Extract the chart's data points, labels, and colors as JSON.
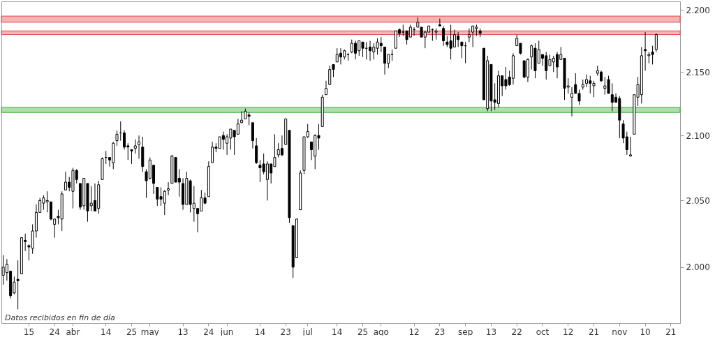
{
  "chart_data": {
    "type": "candlestick",
    "categories": [
      null,
      null,
      null,
      null,
      null,
      null,
      null,
      "15",
      null,
      null,
      null,
      null,
      null,
      null,
      "24",
      null,
      null,
      null,
      null,
      "abr",
      null,
      null,
      null,
      null,
      null,
      null,
      null,
      null,
      "14",
      null,
      null,
      null,
      null,
      null,
      null,
      "25",
      null,
      null,
      null,
      null,
      "may",
      null,
      null,
      null,
      null,
      null,
      null,
      null,
      null,
      "13",
      null,
      null,
      null,
      null,
      null,
      null,
      "24",
      null,
      null,
      null,
      null,
      "jun",
      null,
      null,
      null,
      null,
      null,
      null,
      null,
      null,
      "14",
      null,
      null,
      null,
      null,
      null,
      null,
      "23",
      null,
      null,
      null,
      null,
      null,
      "jul",
      null,
      null,
      null,
      null,
      null,
      null,
      null,
      "14",
      null,
      null,
      null,
      null,
      null,
      null,
      "25",
      null,
      null,
      null,
      null,
      "ago",
      null,
      null,
      null,
      null,
      null,
      null,
      null,
      null,
      "12",
      null,
      null,
      null,
      null,
      null,
      null,
      "23",
      null,
      null,
      null,
      null,
      null,
      null,
      "sep",
      null,
      null,
      null,
      null,
      null,
      null,
      "13",
      null,
      null,
      null,
      null,
      null,
      null,
      "22",
      null,
      null,
      null,
      null,
      null,
      null,
      "oct",
      null,
      null,
      null,
      null,
      null,
      null,
      "12",
      null,
      null,
      null,
      null,
      null,
      null,
      "21",
      null,
      null,
      null,
      null,
      null,
      null,
      "nov",
      null,
      null,
      null,
      null,
      null,
      null,
      "10",
      null,
      null,
      null,
      null,
      null,
      null,
      "21",
      null,
      null
    ],
    "ohlc": [
      [
        1994,
        2009,
        1987,
        2000
      ],
      [
        1996,
        2006,
        1990,
        2002
      ],
      [
        1997,
        1997,
        1977,
        1979
      ],
      [
        1981,
        1993,
        1980,
        1989
      ],
      [
        1991,
        2005,
        1969,
        1990
      ],
      [
        1995,
        2022,
        1995,
        2022
      ],
      [
        2020,
        2025,
        2012,
        2019
      ],
      [
        2016,
        2017,
        2005,
        2015
      ],
      [
        2014,
        2032,
        2010,
        2027
      ],
      [
        2027,
        2047,
        2022,
        2041
      ],
      [
        2041,
        2052,
        2041,
        2050
      ],
      [
        2048,
        2054,
        2043,
        2052
      ],
      [
        2049,
        2057,
        2041,
        2050
      ],
      [
        2049,
        2049,
        2035,
        2036
      ],
      [
        2032,
        2036,
        2022,
        2036
      ],
      [
        2038,
        2043,
        2032,
        2037
      ],
      [
        2036,
        2057,
        2027,
        2055
      ],
      [
        2058,
        2072,
        2058,
        2064
      ],
      [
        2064,
        2068,
        2057,
        2060
      ],
      [
        2057,
        2075,
        2044,
        2073
      ],
      [
        2073,
        2074,
        2063,
        2066
      ],
      [
        2063,
        2063,
        2043,
        2045
      ],
      [
        2046,
        2067,
        2043,
        2067
      ],
      [
        2063,
        2063,
        2034,
        2042
      ],
      [
        2046,
        2061,
        2042,
        2048
      ],
      [
        2050,
        2063,
        2042,
        2042
      ],
      [
        2044,
        2065,
        2040,
        2062
      ],
      [
        2066,
        2083,
        2066,
        2082
      ],
      [
        2083,
        2088,
        2078,
        2083
      ],
      [
        2083,
        2083,
        2076,
        2081
      ],
      [
        2079,
        2095,
        2074,
        2094
      ],
      [
        2096,
        2104,
        2092,
        2101
      ],
      [
        2102,
        2111,
        2096,
        2102
      ],
      [
        2102,
        2104,
        2089,
        2091
      ],
      [
        2092,
        2094,
        2081,
        2091
      ],
      [
        2089,
        2089,
        2078,
        2088
      ],
      [
        2090,
        2097,
        2086,
        2092
      ],
      [
        2093,
        2100,
        2082,
        2095
      ],
      [
        2091,
        2099,
        2072,
        2076
      ],
      [
        2072,
        2074,
        2052,
        2065
      ],
      [
        2067,
        2083,
        2066,
        2081
      ],
      [
        2077,
        2077,
        2055,
        2063
      ],
      [
        2060,
        2060,
        2046,
        2051
      ],
      [
        2053,
        2060,
        2046,
        2051
      ],
      [
        2048,
        2058,
        2039,
        2057
      ],
      [
        2058,
        2064,
        2054,
        2059
      ],
      [
        2063,
        2085,
        2063,
        2084
      ],
      [
        2083,
        2083,
        2064,
        2064
      ],
      [
        2067,
        2074,
        2053,
        2064
      ],
      [
        2063,
        2067,
        2043,
        2047
      ],
      [
        2047,
        2072,
        2047,
        2067
      ],
      [
        2065,
        2066,
        2041,
        2047
      ],
      [
        2044,
        2061,
        2034,
        2048
      ],
      [
        2044,
        2044,
        2026,
        2040
      ],
      [
        2042,
        2058,
        2042,
        2052
      ],
      [
        2052,
        2056,
        2047,
        2048
      ],
      [
        2053,
        2080,
        2053,
        2076
      ],
      [
        2079,
        2095,
        2079,
        2091
      ],
      [
        2091,
        2094,
        2087,
        2090
      ],
      [
        2090,
        2099,
        2090,
        2099
      ],
      [
        2100,
        2103,
        2089,
        2097
      ],
      [
        2094,
        2101,
        2085,
        2099
      ],
      [
        2098,
        2105,
        2089,
        2105
      ],
      [
        2104,
        2104,
        2085,
        2099
      ],
      [
        2101,
        2113,
        2101,
        2109
      ],
      [
        2110,
        2119,
        2110,
        2112
      ],
      [
        2113,
        2121,
        2113,
        2119
      ],
      [
        2116,
        2118,
        2108,
        2115
      ],
      [
        2110,
        2110,
        2090,
        2096
      ],
      [
        2092,
        2098,
        2078,
        2079
      ],
      [
        2077,
        2081,
        2064,
        2075
      ],
      [
        2078,
        2086,
        2070,
        2072
      ],
      [
        2066,
        2080,
        2050,
        2078
      ],
      [
        2078,
        2078,
        2063,
        2071
      ],
      [
        2076,
        2101,
        2076,
        2083
      ],
      [
        2085,
        2094,
        2083,
        2089
      ],
      [
        2090,
        2100,
        2084,
        2085
      ],
      [
        2093,
        2113,
        2093,
        2113
      ],
      [
        2104,
        2104,
        2033,
        2037
      ],
      [
        2031,
        2031,
        1992,
        2000
      ],
      [
        2007,
        2036,
        2007,
        2036
      ],
      [
        2043,
        2073,
        2043,
        2071
      ],
      [
        2073,
        2099,
        2070,
        2099
      ],
      [
        2099,
        2109,
        2098,
        2103
      ],
      [
        2095,
        2095,
        2081,
        2089
      ],
      [
        2084,
        2101,
        2074,
        2100
      ],
      [
        2100,
        2109,
        2089,
        2098
      ],
      [
        2107,
        2132,
        2107,
        2130
      ],
      [
        2132,
        2143,
        2132,
        2137
      ],
      [
        2140,
        2155,
        2140,
        2152
      ],
      [
        2156,
        2156,
        2146,
        2152
      ],
      [
        2158,
        2169,
        2158,
        2164
      ],
      [
        2165,
        2169,
        2156,
        2162
      ],
      [
        2162,
        2168,
        2160,
        2167
      ],
      [
        2164,
        2165,
        2159,
        2164
      ],
      [
        2166,
        2176,
        2165,
        2173
      ],
      [
        2173,
        2175,
        2160,
        2165
      ],
      [
        2167,
        2175,
        2163,
        2175
      ],
      [
        2174,
        2174,
        2162,
        2169
      ],
      [
        2169,
        2174,
        2160,
        2169
      ],
      [
        2170,
        2175,
        2159,
        2167
      ],
      [
        2166,
        2173,
        2160,
        2170
      ],
      [
        2169,
        2177,
        2164,
        2174
      ],
      [
        2173,
        2178,
        2166,
        2171
      ],
      [
        2170,
        2170,
        2148,
        2157
      ],
      [
        2157,
        2164,
        2153,
        2164
      ],
      [
        2164,
        2168,
        2159,
        2164
      ],
      [
        2169,
        2183,
        2169,
        2183
      ],
      [
        2184,
        2185,
        2178,
        2181
      ],
      [
        2182,
        2188,
        2179,
        2182
      ],
      [
        2183,
        2183,
        2172,
        2176
      ],
      [
        2178,
        2188,
        2178,
        2186
      ],
      [
        2184,
        2186,
        2179,
        2184
      ],
      [
        2186,
        2194,
        2186,
        2190
      ],
      [
        2186,
        2186,
        2178,
        2178
      ],
      [
        2178,
        2183,
        2169,
        2182
      ],
      [
        2182,
        2187,
        2182,
        2187
      ],
      [
        2184,
        2185,
        2175,
        2184
      ],
      [
        2182,
        2185,
        2176,
        2183
      ],
      [
        2188,
        2193,
        2187,
        2187
      ],
      [
        2185,
        2187,
        2171,
        2175
      ],
      [
        2174,
        2179,
        2170,
        2172
      ],
      [
        2175,
        2188,
        2160,
        2169
      ],
      [
        2170,
        2184,
        2170,
        2180
      ],
      [
        2179,
        2182,
        2170,
        2176
      ],
      [
        2174,
        2174,
        2161,
        2171
      ],
      [
        2171,
        2174,
        2157,
        2171
      ],
      [
        2178,
        2185,
        2174,
        2180
      ],
      [
        2182,
        2187,
        2170,
        2187
      ],
      [
        2185,
        2188,
        2179,
        2186
      ],
      [
        2183,
        2185,
        2178,
        2181
      ],
      [
        2169,
        2169,
        2128,
        2128
      ],
      [
        2121,
        2163,
        2119,
        2159
      ],
      [
        2156,
        2156,
        2119,
        2127
      ],
      [
        2128,
        2141,
        2120,
        2126
      ],
      [
        2125,
        2151,
        2122,
        2147
      ],
      [
        2147,
        2147,
        2131,
        2139
      ],
      [
        2144,
        2154,
        2136,
        2139
      ],
      [
        2146,
        2151,
        2139,
        2140
      ],
      [
        2145,
        2165,
        2140,
        2163
      ],
      [
        2171,
        2180,
        2171,
        2177
      ],
      [
        2173,
        2173,
        2164,
        2165
      ],
      [
        2159,
        2159,
        2145,
        2146
      ],
      [
        2146,
        2161,
        2142,
        2160
      ],
      [
        2162,
        2172,
        2152,
        2171
      ],
      [
        2169,
        2173,
        2145,
        2151
      ],
      [
        2157,
        2175,
        2157,
        2168
      ],
      [
        2164,
        2164,
        2155,
        2161
      ],
      [
        2163,
        2166,
        2144,
        2151
      ],
      [
        2155,
        2164,
        2155,
        2160
      ],
      [
        2158,
        2163,
        2150,
        2161
      ],
      [
        2164,
        2166,
        2145,
        2154
      ],
      [
        2160,
        2170,
        2160,
        2164
      ],
      [
        2161,
        2161,
        2128,
        2137
      ],
      [
        2138,
        2145,
        2133,
        2139
      ],
      [
        2130,
        2138,
        2115,
        2133
      ],
      [
        2140,
        2149,
        2133,
        2133
      ],
      [
        2133,
        2136,
        2124,
        2127
      ],
      [
        2138,
        2144,
        2136,
        2140
      ],
      [
        2141,
        2148,
        2138,
        2144
      ],
      [
        2143,
        2147,
        2133,
        2141
      ],
      [
        2139,
        2143,
        2130,
        2141
      ],
      [
        2149,
        2155,
        2147,
        2151
      ],
      [
        2150,
        2151,
        2142,
        2143
      ],
      [
        2137,
        2146,
        2132,
        2139
      ],
      [
        2144,
        2147,
        2133,
        2133
      ],
      [
        2132,
        2141,
        2119,
        2126
      ],
      [
        2130,
        2133,
        2126,
        2126
      ],
      [
        2129,
        2131,
        2098,
        2112
      ],
      [
        2109,
        2112,
        2094,
        2098
      ],
      [
        2099,
        2103,
        2085,
        2089
      ],
      [
        2084,
        2099,
        2084,
        2085
      ],
      [
        2101,
        2132,
        2101,
        2132
      ],
      [
        2130,
        2146,
        2123,
        2140
      ],
      [
        2132,
        2170,
        2125,
        2163
      ],
      [
        2168,
        2182,
        2151,
        2167
      ],
      [
        2163,
        2166,
        2157,
        2164
      ],
      [
        2166,
        2171,
        2156,
        2164
      ],
      [
        2168,
        2181,
        2166,
        2180
      ],
      null,
      null,
      null,
      null,
      null,
      null
    ],
    "color": "#000000",
    "log": true,
    "ylim": [
      1959,
      2207
    ],
    "yticks": [
      {
        "value": 2000,
        "label": "2.000"
      },
      {
        "value": 2050,
        "label": "2.050"
      },
      {
        "value": 2100,
        "label": "2.100"
      },
      {
        "value": 2150,
        "label": "2.150"
      },
      {
        "value": 2200,
        "label": "2.200"
      }
    ],
    "bands": [
      {
        "axis": "y",
        "from": 2190,
        "to": 2195,
        "color": "#e84545"
      },
      {
        "axis": "y",
        "from": 2180,
        "to": 2183,
        "color": "#e84545"
      },
      {
        "axis": "y",
        "from": 2118,
        "to": 2122,
        "color": "#3aaa35"
      }
    ],
    "annotations": [
      "Datos recibidos en fin de día"
    ]
  }
}
